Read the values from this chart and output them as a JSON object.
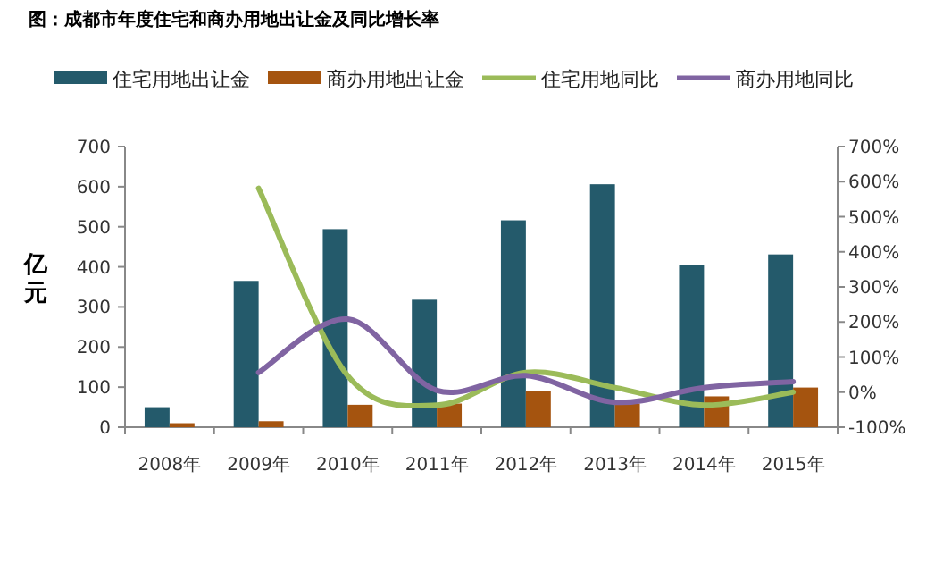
{
  "chart_data": {
    "type": "bar",
    "title": "图：成都市年度住宅和商办用地出让金及同比增长率",
    "ylabel": "亿元",
    "categories": [
      "2008年",
      "2009年",
      "2010年",
      "2011年",
      "2012年",
      "2013年",
      "2014年",
      "2015年"
    ],
    "series": [
      {
        "name": "住宅用地出让金",
        "color": "#245a6b",
        "values": [
          50,
          365,
          494,
          318,
          516,
          606,
          405,
          431
        ]
      },
      {
        "name": "商办用地出让金",
        "color": "#a5540f",
        "values": [
          10,
          15,
          56,
          59,
          90,
          59,
          77,
          99
        ]
      },
      {
        "name": "住宅用地同比",
        "type": "line",
        "axis": "y2",
        "color": "#9bbb59",
        "values": [
          null,
          581,
          47,
          -37,
          56,
          13,
          -37,
          0
        ]
      },
      {
        "name": "商办用地同比",
        "type": "line",
        "axis": "y2",
        "color": "#8064a2",
        "values": [
          null,
          56,
          208,
          5,
          47,
          -29,
          13,
          30
        ]
      }
    ],
    "ylim": [
      0,
      700
    ],
    "yticks": [
      0,
      100,
      200,
      300,
      400,
      500,
      600,
      700
    ],
    "y2lim": [
      -100,
      700
    ],
    "y2ticks": [
      {
        "value": -100,
        "label": "-100%"
      },
      {
        "value": 0,
        "label": "0%"
      },
      {
        "value": 100,
        "label": "100%"
      },
      {
        "value": 200,
        "label": "200%"
      },
      {
        "value": 300,
        "label": "300%"
      },
      {
        "value": 400,
        "label": "400%"
      },
      {
        "value": 500,
        "label": "500%"
      },
      {
        "value": 600,
        "label": "600%"
      },
      {
        "value": 700,
        "label": "700%"
      }
    ],
    "legend": "top",
    "grid": false
  }
}
